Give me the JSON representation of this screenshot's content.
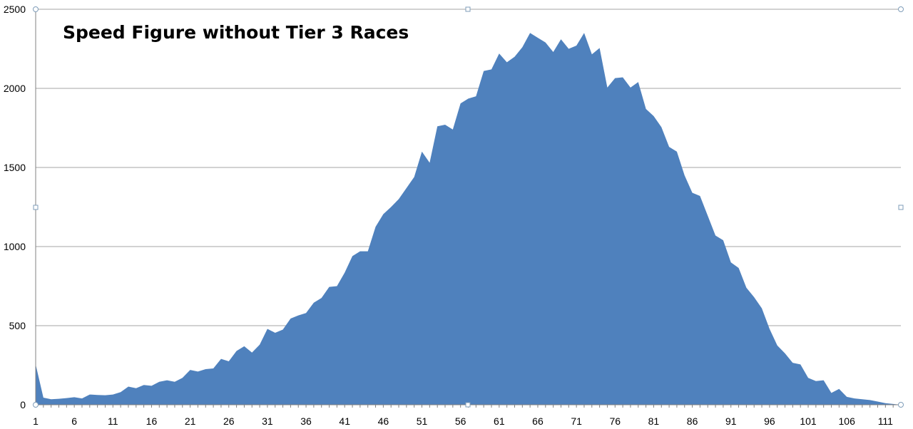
{
  "chart_data": {
    "type": "area",
    "title": "Speed Figure without Tier 3 Races",
    "xlabel": "",
    "ylabel": "",
    "ylim": [
      0,
      2500
    ],
    "yticks": [
      0,
      500,
      1000,
      1500,
      2000,
      2500
    ],
    "xtick_labels": [
      "1",
      "6",
      "11",
      "16",
      "21",
      "26",
      "31",
      "36",
      "41",
      "46",
      "51",
      "56",
      "61",
      "66",
      "71",
      "76",
      "81",
      "86",
      "91",
      "96",
      "101",
      "106",
      "111"
    ],
    "grid": true,
    "legend": "none",
    "color": "#4f81bd",
    "x": [
      1,
      2,
      3,
      4,
      5,
      6,
      7,
      8,
      9,
      10,
      11,
      12,
      13,
      14,
      15,
      16,
      17,
      18,
      19,
      20,
      21,
      22,
      23,
      24,
      25,
      26,
      27,
      28,
      29,
      30,
      31,
      32,
      33,
      34,
      35,
      36,
      37,
      38,
      39,
      40,
      41,
      42,
      43,
      44,
      45,
      46,
      47,
      48,
      49,
      50,
      51,
      52,
      53,
      54,
      55,
      56,
      57,
      58,
      59,
      60,
      61,
      62,
      63,
      64,
      65,
      66,
      67,
      68,
      69,
      70,
      71,
      72,
      73,
      74,
      75,
      76,
      77,
      78,
      79,
      80,
      81,
      82,
      83,
      84,
      85,
      86,
      87,
      88,
      89,
      90,
      91,
      92,
      93,
      94,
      95,
      96,
      97,
      98,
      99,
      100,
      101,
      102,
      103,
      104,
      105,
      106,
      107,
      108,
      109,
      110,
      111,
      112,
      113
    ],
    "values": [
      255,
      45,
      35,
      38,
      42,
      48,
      40,
      65,
      62,
      60,
      65,
      80,
      115,
      105,
      125,
      120,
      145,
      155,
      145,
      170,
      220,
      210,
      225,
      230,
      290,
      275,
      340,
      370,
      330,
      380,
      480,
      455,
      475,
      545,
      565,
      580,
      645,
      675,
      745,
      750,
      835,
      940,
      970,
      970,
      1125,
      1205,
      1250,
      1300,
      1370,
      1440,
      1600,
      1530,
      1760,
      1770,
      1740,
      1905,
      1935,
      1950,
      2110,
      2120,
      2220,
      2165,
      2200,
      2260,
      2350,
      2320,
      2290,
      2230,
      2310,
      2250,
      2270,
      2350,
      2215,
      2255,
      2005,
      2065,
      2070,
      2005,
      2040,
      1870,
      1825,
      1755,
      1630,
      1600,
      1450,
      1340,
      1320,
      1195,
      1070,
      1040,
      900,
      865,
      740,
      680,
      610,
      480,
      375,
      325,
      265,
      255,
      170,
      150,
      155,
      75,
      100,
      50,
      40,
      35,
      30,
      20,
      10,
      5,
      0
    ]
  }
}
